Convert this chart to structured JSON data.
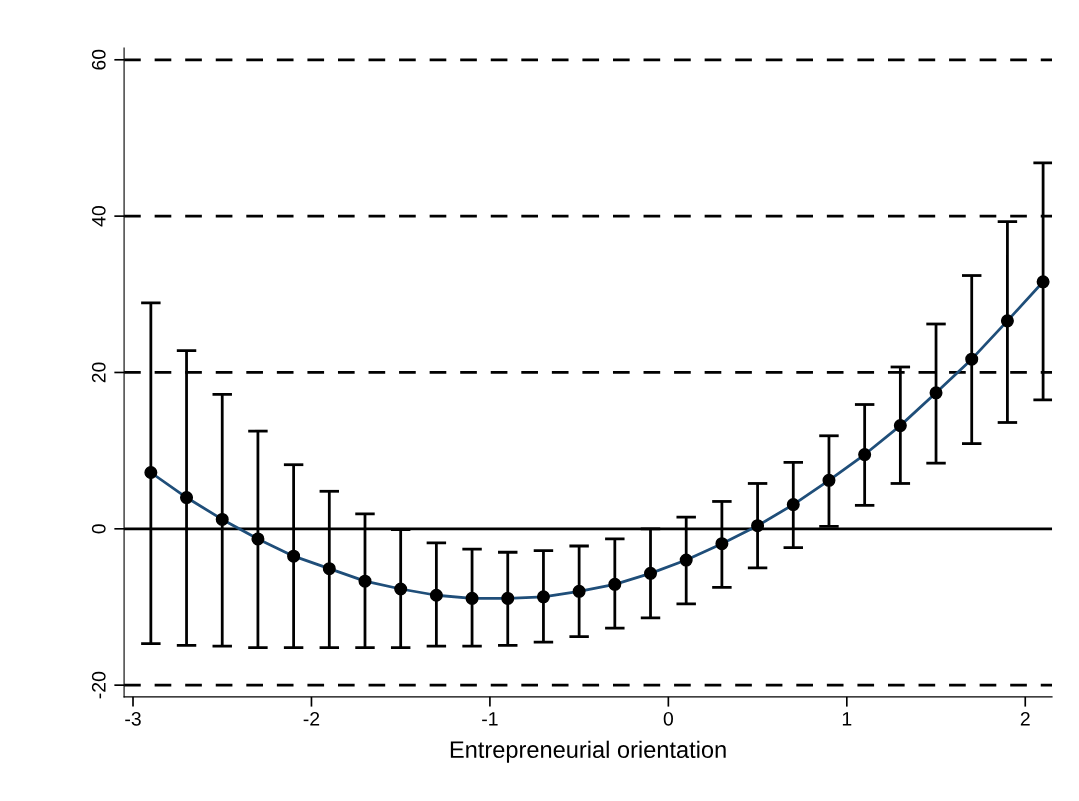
{
  "chart_data": {
    "type": "line",
    "xlabel": "Entrepreneurial orientation",
    "x": [
      -2.9,
      -2.7,
      -2.5,
      -2.3,
      -2.1,
      -1.9,
      -1.7,
      -1.5,
      -1.3,
      -1.1,
      -0.9,
      -0.7,
      -0.5,
      -0.3,
      -0.1,
      0.1,
      0.3,
      0.5,
      0.7,
      0.9,
      1.1,
      1.3,
      1.5,
      1.7,
      1.9,
      2.1
    ],
    "series": [
      {
        "color": "#1f4e79",
        "values": [
          7.2,
          4.0,
          1.2,
          -1.3,
          -3.5,
          -5.1,
          -6.7,
          -7.7,
          -8.5,
          -8.9,
          -8.9,
          -8.7,
          -8.0,
          -7.1,
          -5.7,
          -4.0,
          -1.9,
          0.4,
          3.1,
          6.2,
          9.5,
          13.2,
          17.4,
          21.7,
          26.6,
          31.6
        ],
        "errors": [
          [
            -14.7,
            28.9
          ],
          [
            -14.9,
            22.8
          ],
          [
            -15.0,
            17.2
          ],
          [
            -15.2,
            12.5
          ],
          [
            -15.2,
            8.2
          ],
          [
            -15.2,
            4.8
          ],
          [
            -15.2,
            1.9
          ],
          [
            -15.2,
            -0.1
          ],
          [
            -15.0,
            -1.8
          ],
          [
            -15.0,
            -2.6
          ],
          [
            -14.9,
            -3.0
          ],
          [
            -14.5,
            -2.8
          ],
          [
            -13.8,
            -2.2
          ],
          [
            -12.7,
            -1.3
          ],
          [
            -11.4,
            0
          ],
          [
            -9.6,
            1.5
          ],
          [
            -7.5,
            3.5
          ],
          [
            -5.0,
            5.8
          ],
          [
            -2.4,
            8.5
          ],
          [
            0.3,
            11.9
          ],
          [
            3.0,
            15.9
          ],
          [
            5.8,
            20.7
          ],
          [
            8.4,
            26.2
          ],
          [
            10.9,
            32.4
          ],
          [
            13.6,
            39.3
          ],
          [
            16.5,
            46.8
          ]
        ]
      }
    ],
    "marker": "circle",
    "line_style": "solid",
    "grid": false,
    "legend": false,
    "xlim": [
      -3.05,
      2.15
    ],
    "xticks": [
      -3,
      -2,
      -1,
      0,
      1,
      2
    ],
    "ylim": [
      -21.5,
      61.5
    ],
    "yticks": [
      -20,
      0,
      20,
      40,
      60
    ],
    "ref_lines": [
      {
        "axis": "y",
        "value": -20,
        "line_style": "dashed",
        "color": "#000000"
      },
      {
        "axis": "y",
        "value": 0,
        "line_style": "solid",
        "color": "#000000"
      },
      {
        "axis": "y",
        "value": 20,
        "line_style": "dashed",
        "color": "#000000"
      },
      {
        "axis": "y",
        "value": 40,
        "line_style": "dashed",
        "color": "#000000"
      },
      {
        "axis": "y",
        "value": 60,
        "line_style": "dashed",
        "color": "#000000"
      }
    ]
  }
}
